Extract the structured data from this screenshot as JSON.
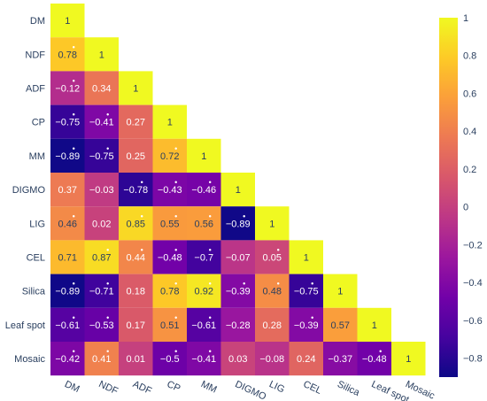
{
  "chart_data": {
    "type": "heatmap",
    "title": "",
    "xlabel": "",
    "ylabel": "",
    "lower_triangular": true,
    "variables": [
      "DM",
      "NDF",
      "ADF",
      "CP",
      "MM",
      "DIGMO",
      "LIG",
      "CEL",
      "Silica",
      "Leaf spot",
      "Mosaic"
    ],
    "matrix": [
      [
        "1"
      ],
      [
        "0.78",
        "1"
      ],
      [
        "−0.12",
        "0.34",
        "1"
      ],
      [
        "−0.75",
        "−0.41",
        "0.27",
        "1"
      ],
      [
        "−0.89",
        "−0.75",
        "0.25",
        "0.72",
        "1"
      ],
      [
        "0.37",
        "−0.03",
        "−0.78",
        "−0.43",
        "−0.46",
        "1"
      ],
      [
        "0.46",
        "0.02",
        "0.85",
        "0.55",
        "0.56",
        "−0.89",
        "1"
      ],
      [
        "0.71",
        "0.87",
        "0.44",
        "−0.48",
        "−0.7",
        "−0.07",
        "0.05",
        "1"
      ],
      [
        "−0.89",
        "−0.71",
        "0.18",
        "0.78",
        "0.92",
        "−0.39",
        "0.48",
        "−0.75",
        "1"
      ],
      [
        "−0.61",
        "−0.53",
        "0.17",
        "0.51",
        "−0.61",
        "−0.28",
        "0.28",
        "−0.39",
        "0.57",
        "1"
      ],
      [
        "−0.42",
        "0.41",
        "0.01",
        "−0.5",
        "−0.41",
        "0.03",
        "−0.08",
        "0.24",
        "−0.37",
        "−0.48",
        "1"
      ]
    ],
    "significance_marker": "•",
    "significant_cells": [
      [
        1,
        0
      ],
      [
        2,
        0
      ],
      [
        3,
        0
      ],
      [
        3,
        1
      ],
      [
        4,
        0
      ],
      [
        4,
        1
      ],
      [
        4,
        3
      ],
      [
        5,
        2
      ],
      [
        5,
        3
      ],
      [
        5,
        4
      ],
      [
        6,
        0
      ],
      [
        6,
        2
      ],
      [
        6,
        3
      ],
      [
        6,
        4
      ],
      [
        6,
        5
      ],
      [
        7,
        1
      ],
      [
        7,
        2
      ],
      [
        7,
        3
      ],
      [
        7,
        4
      ],
      [
        7,
        6
      ],
      [
        8,
        0
      ],
      [
        8,
        1
      ],
      [
        8,
        3
      ],
      [
        8,
        4
      ],
      [
        8,
        5
      ],
      [
        8,
        6
      ],
      [
        8,
        7
      ],
      [
        9,
        0
      ],
      [
        9,
        1
      ],
      [
        9,
        3
      ],
      [
        9,
        4
      ],
      [
        9,
        7
      ],
      [
        10,
        0
      ],
      [
        10,
        1
      ],
      [
        10,
        3
      ],
      [
        10,
        4
      ],
      [
        10,
        9
      ]
    ],
    "colorscale": {
      "name": "plasma",
      "range": [
        -0.9,
        1
      ],
      "stops": [
        "#0d0887",
        "#46039f",
        "#7201a8",
        "#9c179e",
        "#bd3786",
        "#d8576b",
        "#ed7953",
        "#fb9f3a",
        "#fdca26",
        "#f0f921"
      ],
      "ticks": [
        "1",
        "0.8",
        "0.6",
        "0.4",
        "0.2",
        "0",
        "−0.2",
        "−0.4",
        "−0.6",
        "−0.8"
      ]
    },
    "text_color_threshold": 0.45
  }
}
